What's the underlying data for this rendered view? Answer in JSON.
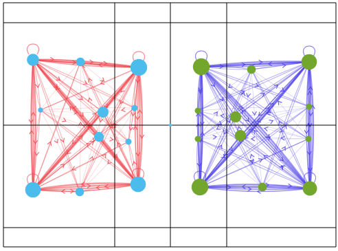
{
  "colors": {
    "background": "#ffffff",
    "grid_line": "#000000",
    "left_edges": "#f0444c",
    "left_nodes": "#4cbcec",
    "right_edges": "#4a3ce6",
    "right_nodes": "#72a62c"
  },
  "graphs": [
    {
      "side": "left",
      "edge_arrowheads": "open-chevron",
      "nodes": [
        {
          "id": "L1",
          "weight": 4
        },
        {
          "id": "L2",
          "weight": 2.5
        },
        {
          "id": "L3",
          "weight": 6
        },
        {
          "id": "L4",
          "weight": 1
        },
        {
          "id": "L5",
          "weight": 3.5
        },
        {
          "id": "L6",
          "weight": 1.5
        },
        {
          "id": "L7",
          "weight": 3
        },
        {
          "id": "L8",
          "weight": 1.5
        },
        {
          "id": "L9",
          "weight": 5.5
        },
        {
          "id": "L10",
          "weight": 2.5
        },
        {
          "id": "L11",
          "weight": 5.5
        }
      ]
    },
    {
      "side": "right",
      "edge_arrowheads": "open-chevron",
      "nodes": [
        {
          "id": "R1",
          "weight": 6
        },
        {
          "id": "R2",
          "weight": 2.5
        },
        {
          "id": "R3",
          "weight": 5.5
        },
        {
          "id": "R4",
          "weight": 1.5
        },
        {
          "id": "R5",
          "weight": 3.5
        },
        {
          "id": "R6",
          "weight": 1.5
        },
        {
          "id": "R7",
          "weight": 1.5
        },
        {
          "id": "R8",
          "weight": 3.5
        },
        {
          "id": "R9",
          "weight": 1.5
        },
        {
          "id": "R10",
          "weight": 6
        },
        {
          "id": "R11",
          "weight": 2.5
        },
        {
          "id": "R12",
          "weight": 5
        }
      ]
    }
  ]
}
